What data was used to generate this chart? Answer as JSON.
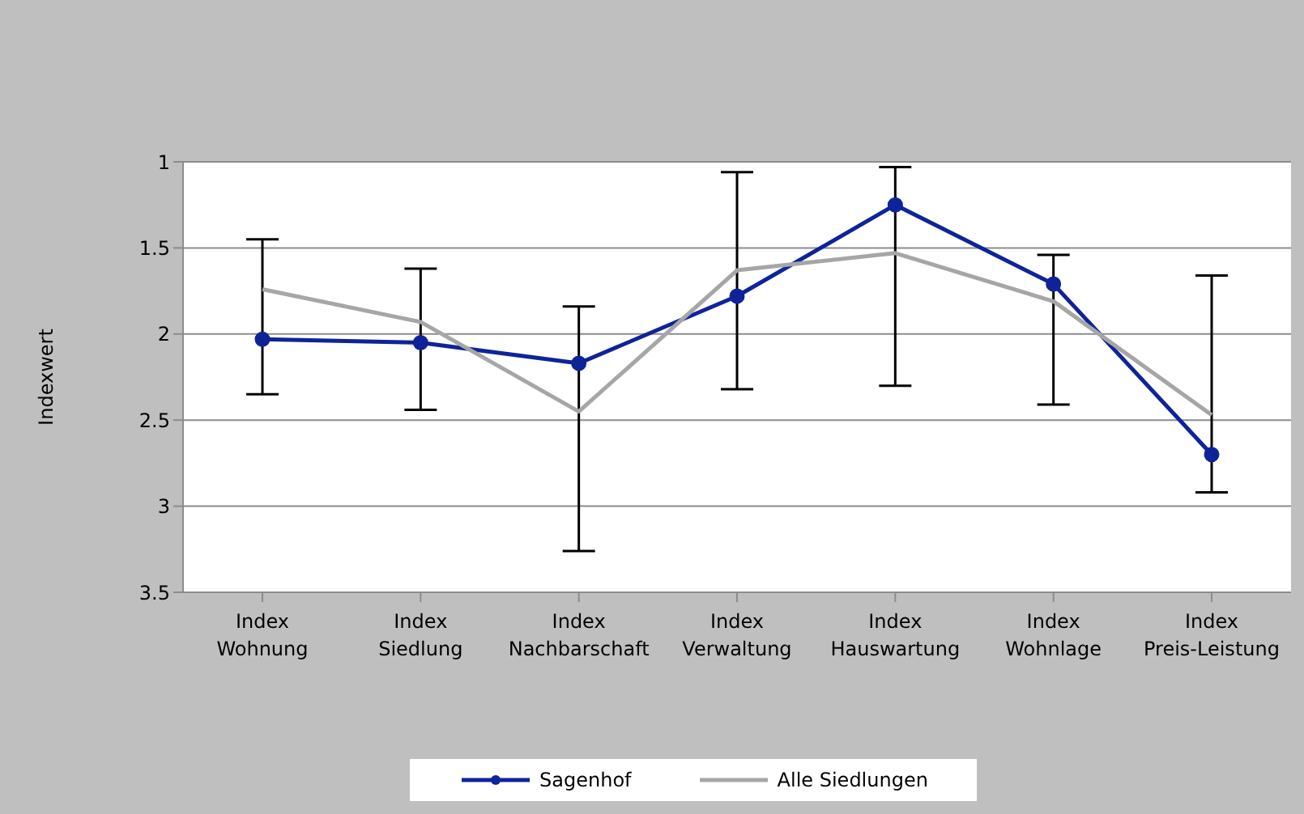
{
  "chart_data": {
    "type": "line",
    "ylabel": "Indexwert",
    "categories": [
      "Index Wohnung",
      "Index Siedlung",
      "Index Nachbarschaft",
      "Index Verwaltung",
      "Index Hauswartung",
      "Index Wohnlage",
      "Index Preis-Leistung"
    ],
    "series": [
      {
        "name": "Sagenhof",
        "color": "#0f2399",
        "marker": "circle",
        "values": [
          2.03,
          2.05,
          2.17,
          1.78,
          1.25,
          1.71,
          2.7
        ],
        "errors": [
          [
            1.45,
            2.35
          ],
          [
            1.62,
            2.44
          ],
          [
            1.84,
            3.26
          ],
          [
            1.06,
            2.32
          ],
          [
            1.03,
            2.3
          ],
          [
            1.54,
            2.41
          ],
          [
            1.66,
            2.92
          ]
        ]
      },
      {
        "name": "Alle Siedlungen",
        "color": "#a6a6a6",
        "marker": "none",
        "values": [
          1.74,
          1.93,
          2.45,
          1.63,
          1.53,
          1.81,
          2.47
        ]
      }
    ],
    "ylim": [
      3.5,
      1
    ],
    "yticks": [
      1,
      1.5,
      2,
      2.5,
      3,
      3.5
    ],
    "grid": "y",
    "legend": "bottom",
    "line_style": "solid"
  }
}
